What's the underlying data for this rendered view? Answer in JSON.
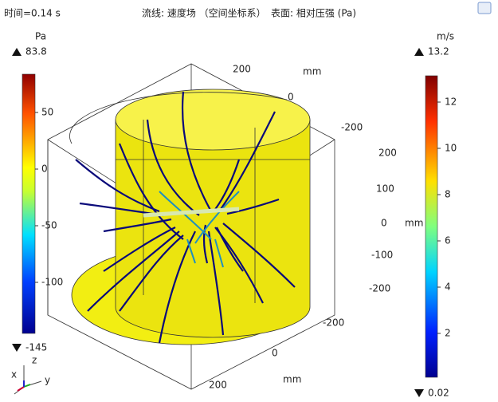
{
  "header": {
    "time": "时间=0.14 s",
    "streamline": "流线: 速度场 （空间坐标系）",
    "surface": "表面: 相对压强 (Pa)"
  },
  "left_colorbar": {
    "unit": "Pa",
    "max": "83.8",
    "min": "-145",
    "ticks": [
      "50",
      "0",
      "-50",
      "-100"
    ]
  },
  "right_colorbar": {
    "unit": "m/s",
    "max": "13.2",
    "min": "0.02",
    "ticks": [
      "12",
      "10",
      "8",
      "6",
      "4",
      "2"
    ]
  },
  "axes": {
    "top": [
      "200",
      "mm",
      "0",
      "-200"
    ],
    "right": [
      "200",
      "100",
      "0",
      "-100",
      "-200",
      "mm"
    ],
    "bottom": [
      "-200",
      "0",
      "mm",
      "200"
    ],
    "triad": [
      "z",
      "y",
      "x"
    ]
  }
}
